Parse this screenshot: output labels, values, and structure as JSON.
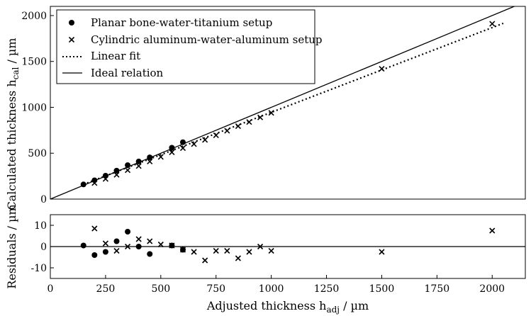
{
  "chart_data": [
    {
      "type": "scatter",
      "panel": "main",
      "ylabel_main": "Calculated thickness h",
      "ylabel_sub": "cal",
      "ylabel_unit": " / µm",
      "xlim": [
        0,
        2150
      ],
      "ylim": [
        0,
        2100
      ],
      "yticks": [
        0,
        500,
        1000,
        1500,
        2000
      ],
      "grid": false,
      "legend_position": "top-left",
      "series": [
        {
          "name": "Planar bone-water-titanium setup",
          "marker": "circle",
          "x": [
            150,
            200,
            250,
            300,
            350,
            400,
            450,
            550,
            600
          ],
          "y": [
            160,
            205,
            255,
            310,
            370,
            410,
            455,
            560,
            620
          ]
        },
        {
          "name": "Cylindric aluminum-water-aluminum setup",
          "marker": "x",
          "x": [
            200,
            250,
            300,
            350,
            400,
            450,
            500,
            550,
            600,
            650,
            700,
            750,
            800,
            850,
            900,
            950,
            1000,
            1500,
            2000
          ],
          "y": [
            175,
            220,
            265,
            315,
            360,
            410,
            460,
            510,
            555,
            600,
            645,
            695,
            745,
            795,
            840,
            890,
            940,
            1420,
            1910
          ]
        },
        {
          "name": "Linear fit",
          "style": "dotted",
          "x": [
            150,
            2050
          ],
          "y": [
            160,
            1915
          ]
        },
        {
          "name": "Ideal relation",
          "style": "solid",
          "x": [
            0,
            2150
          ],
          "y": [
            0,
            2150
          ]
        }
      ]
    },
    {
      "type": "scatter",
      "panel": "residuals",
      "xlabel_main": "Adjusted thickness h",
      "xlabel_sub": "adj",
      "xlabel_unit": " / µm",
      "ylabel": "Residuals / µm",
      "xlim": [
        0,
        2150
      ],
      "ylim": [
        -15,
        15
      ],
      "xticks": [
        0,
        250,
        500,
        750,
        1000,
        1250,
        1500,
        1750,
        2000
      ],
      "yticks": [
        -10,
        0,
        10
      ],
      "zero_line": true,
      "series": [
        {
          "name": "Planar bone-water-titanium setup",
          "marker": "circle",
          "x": [
            150,
            200,
            250,
            300,
            350,
            400,
            450,
            550,
            600
          ],
          "y": [
            0.5,
            -4,
            -2.5,
            2.5,
            7,
            0,
            -3.5,
            0.5,
            -1.5
          ]
        },
        {
          "name": "Cylindric aluminum-water-aluminum setup",
          "marker": "x",
          "x": [
            200,
            250,
            300,
            350,
            400,
            450,
            500,
            550,
            600,
            650,
            700,
            750,
            800,
            850,
            900,
            950,
            1000,
            1500,
            2000
          ],
          "y": [
            8.5,
            1.5,
            -2,
            0,
            3.5,
            2.5,
            1,
            0.5,
            -1.5,
            -2.5,
            -6.5,
            -2,
            -2,
            -5.5,
            -2.5,
            0,
            -2,
            -2.5,
            7.5
          ]
        }
      ]
    }
  ]
}
